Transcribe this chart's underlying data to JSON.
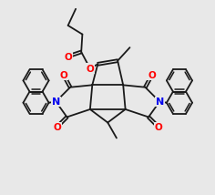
{
  "bg": "#e8e8e8",
  "bc": "#1a1a1a",
  "nc": "#0000ee",
  "oc": "#ff0000",
  "lw": 1.3,
  "lw_thick": 1.6
}
